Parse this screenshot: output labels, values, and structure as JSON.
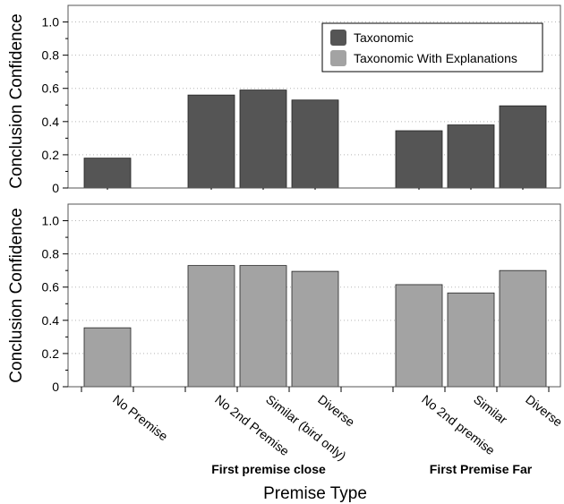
{
  "chart_data": {
    "type": "bar",
    "ylabel": "Conclusion Confidence",
    "xlabel": "Premise Type",
    "ylim": [
      0,
      1.1
    ],
    "y_ticks": [
      "0",
      "0.2",
      "0.4",
      "0.6",
      "0.8",
      "1.0"
    ],
    "legend_position": "top-right",
    "colors": {
      "series1": "#555555",
      "series2": "#a3a3a3"
    },
    "categories": [
      "No Premise",
      "No 2nd Premise",
      "Similar (bird only)",
      "Diverse",
      "No 2nd premise",
      "Similar",
      "Diverse"
    ],
    "groups": [
      {
        "label": "",
        "categories": [
          0
        ]
      },
      {
        "label": "First premise close",
        "categories": [
          1,
          2,
          3
        ]
      },
      {
        "label": "First Premise Far",
        "categories": [
          4,
          5,
          6
        ]
      }
    ],
    "series": [
      {
        "name": "Taxonomic",
        "values": [
          0.18,
          0.56,
          0.59,
          0.53,
          0.345,
          0.38,
          0.495
        ]
      },
      {
        "name": "Taxonomic With Explanations",
        "values": [
          0.355,
          0.73,
          0.73,
          0.695,
          0.615,
          0.565,
          0.7
        ]
      }
    ]
  }
}
